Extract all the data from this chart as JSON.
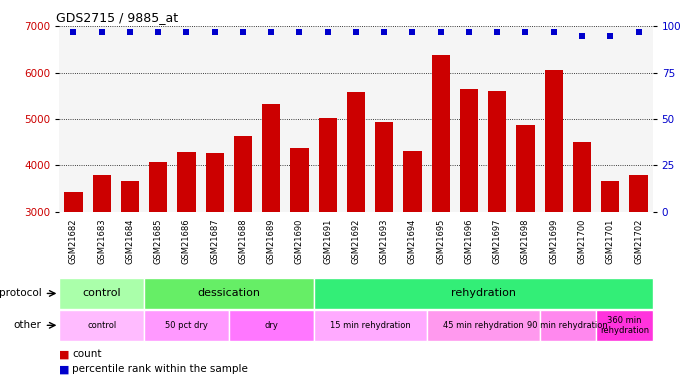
{
  "title": "GDS2715 / 9885_at",
  "samples": [
    "GSM21682",
    "GSM21683",
    "GSM21684",
    "GSM21685",
    "GSM21686",
    "GSM21687",
    "GSM21688",
    "GSM21689",
    "GSM21690",
    "GSM21691",
    "GSM21692",
    "GSM21693",
    "GSM21694",
    "GSM21695",
    "GSM21696",
    "GSM21697",
    "GSM21698",
    "GSM21699",
    "GSM21700",
    "GSM21701",
    "GSM21702"
  ],
  "counts": [
    3430,
    3800,
    3660,
    4080,
    4280,
    4270,
    4640,
    5330,
    4380,
    5020,
    5580,
    4940,
    4310,
    6380,
    5640,
    5610,
    4870,
    6050,
    4510,
    3660,
    3800
  ],
  "percentile_ranks": [
    97,
    97,
    97,
    97,
    97,
    97,
    97,
    97,
    97,
    97,
    97,
    97,
    97,
    97,
    97,
    97,
    97,
    97,
    95,
    95,
    97
  ],
  "bar_color": "#cc0000",
  "dot_color": "#0000cc",
  "ylim_left": [
    3000,
    7000
  ],
  "ylim_right": [
    0,
    100
  ],
  "yticks_left": [
    3000,
    4000,
    5000,
    6000,
    7000
  ],
  "yticks_right": [
    0,
    25,
    50,
    75,
    100
  ],
  "protocol_row": {
    "label": "protocol",
    "segments": [
      {
        "text": "control",
        "start": 0,
        "end": 3,
        "color": "#aaffaa"
      },
      {
        "text": "dessication",
        "start": 3,
        "end": 9,
        "color": "#66ee66"
      },
      {
        "text": "rehydration",
        "start": 9,
        "end": 21,
        "color": "#33ee77"
      }
    ]
  },
  "other_row": {
    "label": "other",
    "segments": [
      {
        "text": "control",
        "start": 0,
        "end": 3,
        "color": "#ffbbff"
      },
      {
        "text": "50 pct dry",
        "start": 3,
        "end": 6,
        "color": "#ff99ff"
      },
      {
        "text": "dry",
        "start": 6,
        "end": 9,
        "color": "#ff77ff"
      },
      {
        "text": "15 min rehydration",
        "start": 9,
        "end": 13,
        "color": "#ffaaff"
      },
      {
        "text": "45 min rehydration",
        "start": 13,
        "end": 17,
        "color": "#ff99ee"
      },
      {
        "text": "90 min rehydration",
        "start": 17,
        "end": 19,
        "color": "#ff88ee"
      },
      {
        "text": "360 min\nrehydration",
        "start": 19,
        "end": 21,
        "color": "#ff33dd"
      }
    ]
  },
  "ticklabel_left_color": "#cc0000",
  "ticklabel_right_color": "#0000cc",
  "background_color": "#ffffff"
}
